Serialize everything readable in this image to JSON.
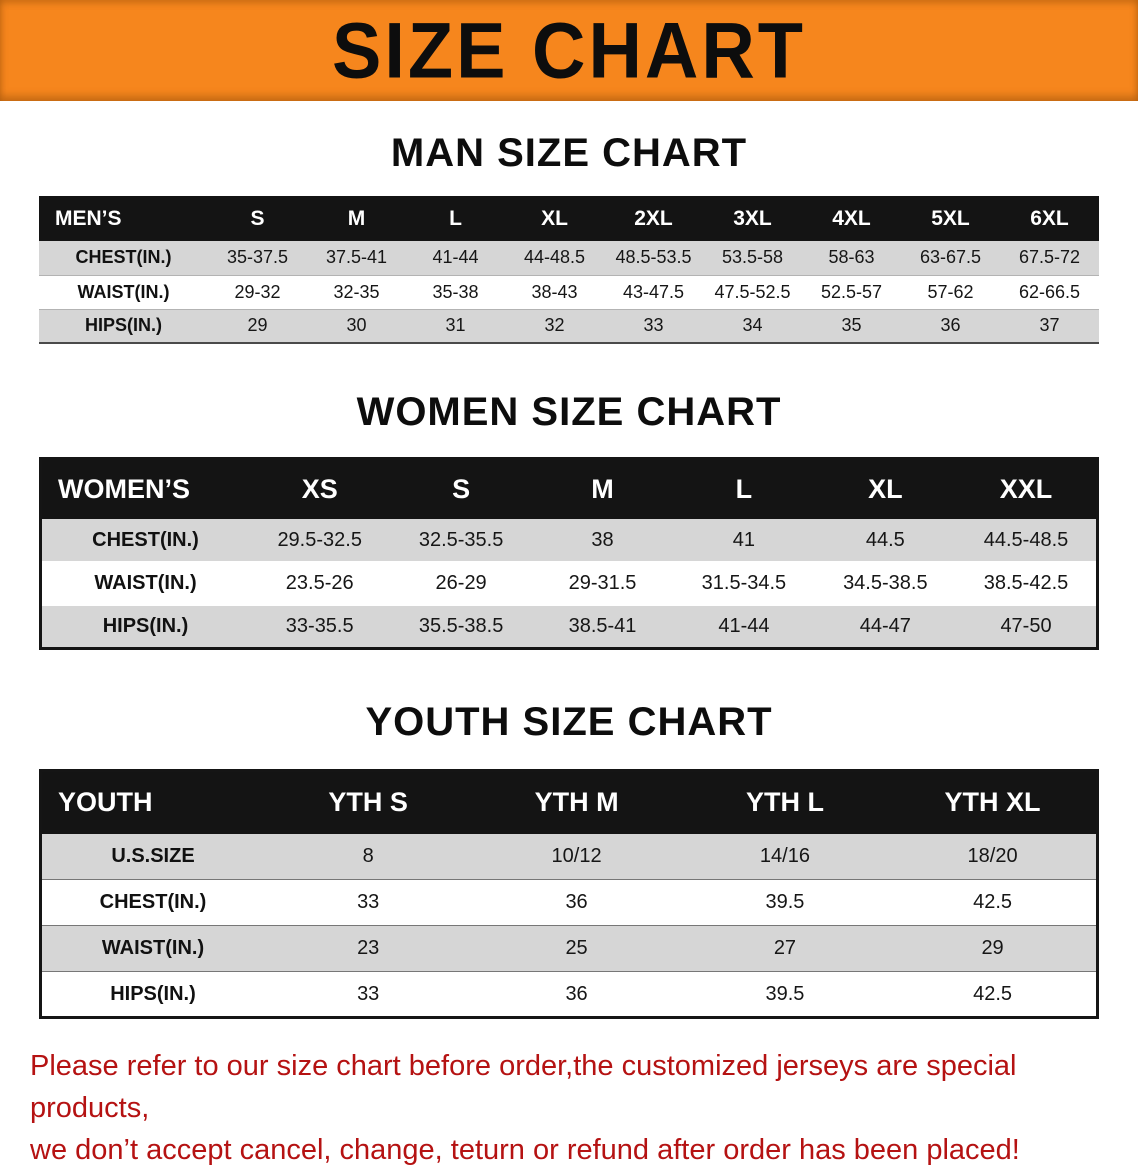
{
  "colors": {
    "banner-orange": "#f6861d",
    "header-black": "#141414",
    "row-gray": "#d6d6d6",
    "warn-red": "#b51212"
  },
  "banner": {
    "title": "SIZE CHART"
  },
  "sections": [
    {
      "heading": "MAN SIZE CHART",
      "table": {
        "header": [
          "MEN’S",
          "S",
          "M",
          "L",
          "XL",
          "2XL",
          "3XL",
          "4XL",
          "5XL",
          "6XL"
        ],
        "rows": [
          [
            "CHEST(IN.)",
            "35-37.5",
            "37.5-41",
            "41-44",
            "44-48.5",
            "48.5-53.5",
            "53.5-58",
            "58-63",
            "63-67.5",
            "67.5-72"
          ],
          [
            "WAIST(IN.)",
            "29-32",
            "32-35",
            "35-38",
            "38-43",
            "43-47.5",
            "47.5-52.5",
            "52.5-57",
            "57-62",
            "62-66.5"
          ],
          [
            "HIPS(IN.)",
            "29",
            "30",
            "31",
            "32",
            "33",
            "34",
            "35",
            "36",
            "37"
          ]
        ]
      }
    },
    {
      "heading": "WOMEN SIZE CHART",
      "table": {
        "header": [
          "WOMEN’S",
          "XS",
          "S",
          "M",
          "L",
          "XL",
          "XXL"
        ],
        "rows": [
          [
            "CHEST(IN.)",
            "29.5-32.5",
            "32.5-35.5",
            "38",
            "41",
            "44.5",
            "44.5-48.5"
          ],
          [
            "WAIST(IN.)",
            "23.5-26",
            "26-29",
            "29-31.5",
            "31.5-34.5",
            "34.5-38.5",
            "38.5-42.5"
          ],
          [
            "HIPS(IN.)",
            "33-35.5",
            "35.5-38.5",
            "38.5-41",
            "41-44",
            "44-47",
            "47-50"
          ]
        ]
      }
    },
    {
      "heading": "YOUTH SIZE CHART",
      "table": {
        "header": [
          "YOUTH",
          "YTH S",
          "YTH M",
          "YTH L",
          "YTH XL"
        ],
        "rows": [
          [
            "U.S.SIZE",
            "8",
            "10/12",
            "14/16",
            "18/20"
          ],
          [
            "CHEST(IN.)",
            "33",
            "36",
            "39.5",
            "42.5"
          ],
          [
            "WAIST(IN.)",
            "23",
            "25",
            "27",
            "29"
          ],
          [
            "HIPS(IN.)",
            "33",
            "36",
            "39.5",
            "42.5"
          ]
        ]
      }
    }
  ],
  "disclaimer": {
    "lines": [
      "Please refer to our size chart before order,the customized jerseys are special products,",
      "we don’t accept cancel, change, teturn or refund after order has been placed!"
    ]
  }
}
